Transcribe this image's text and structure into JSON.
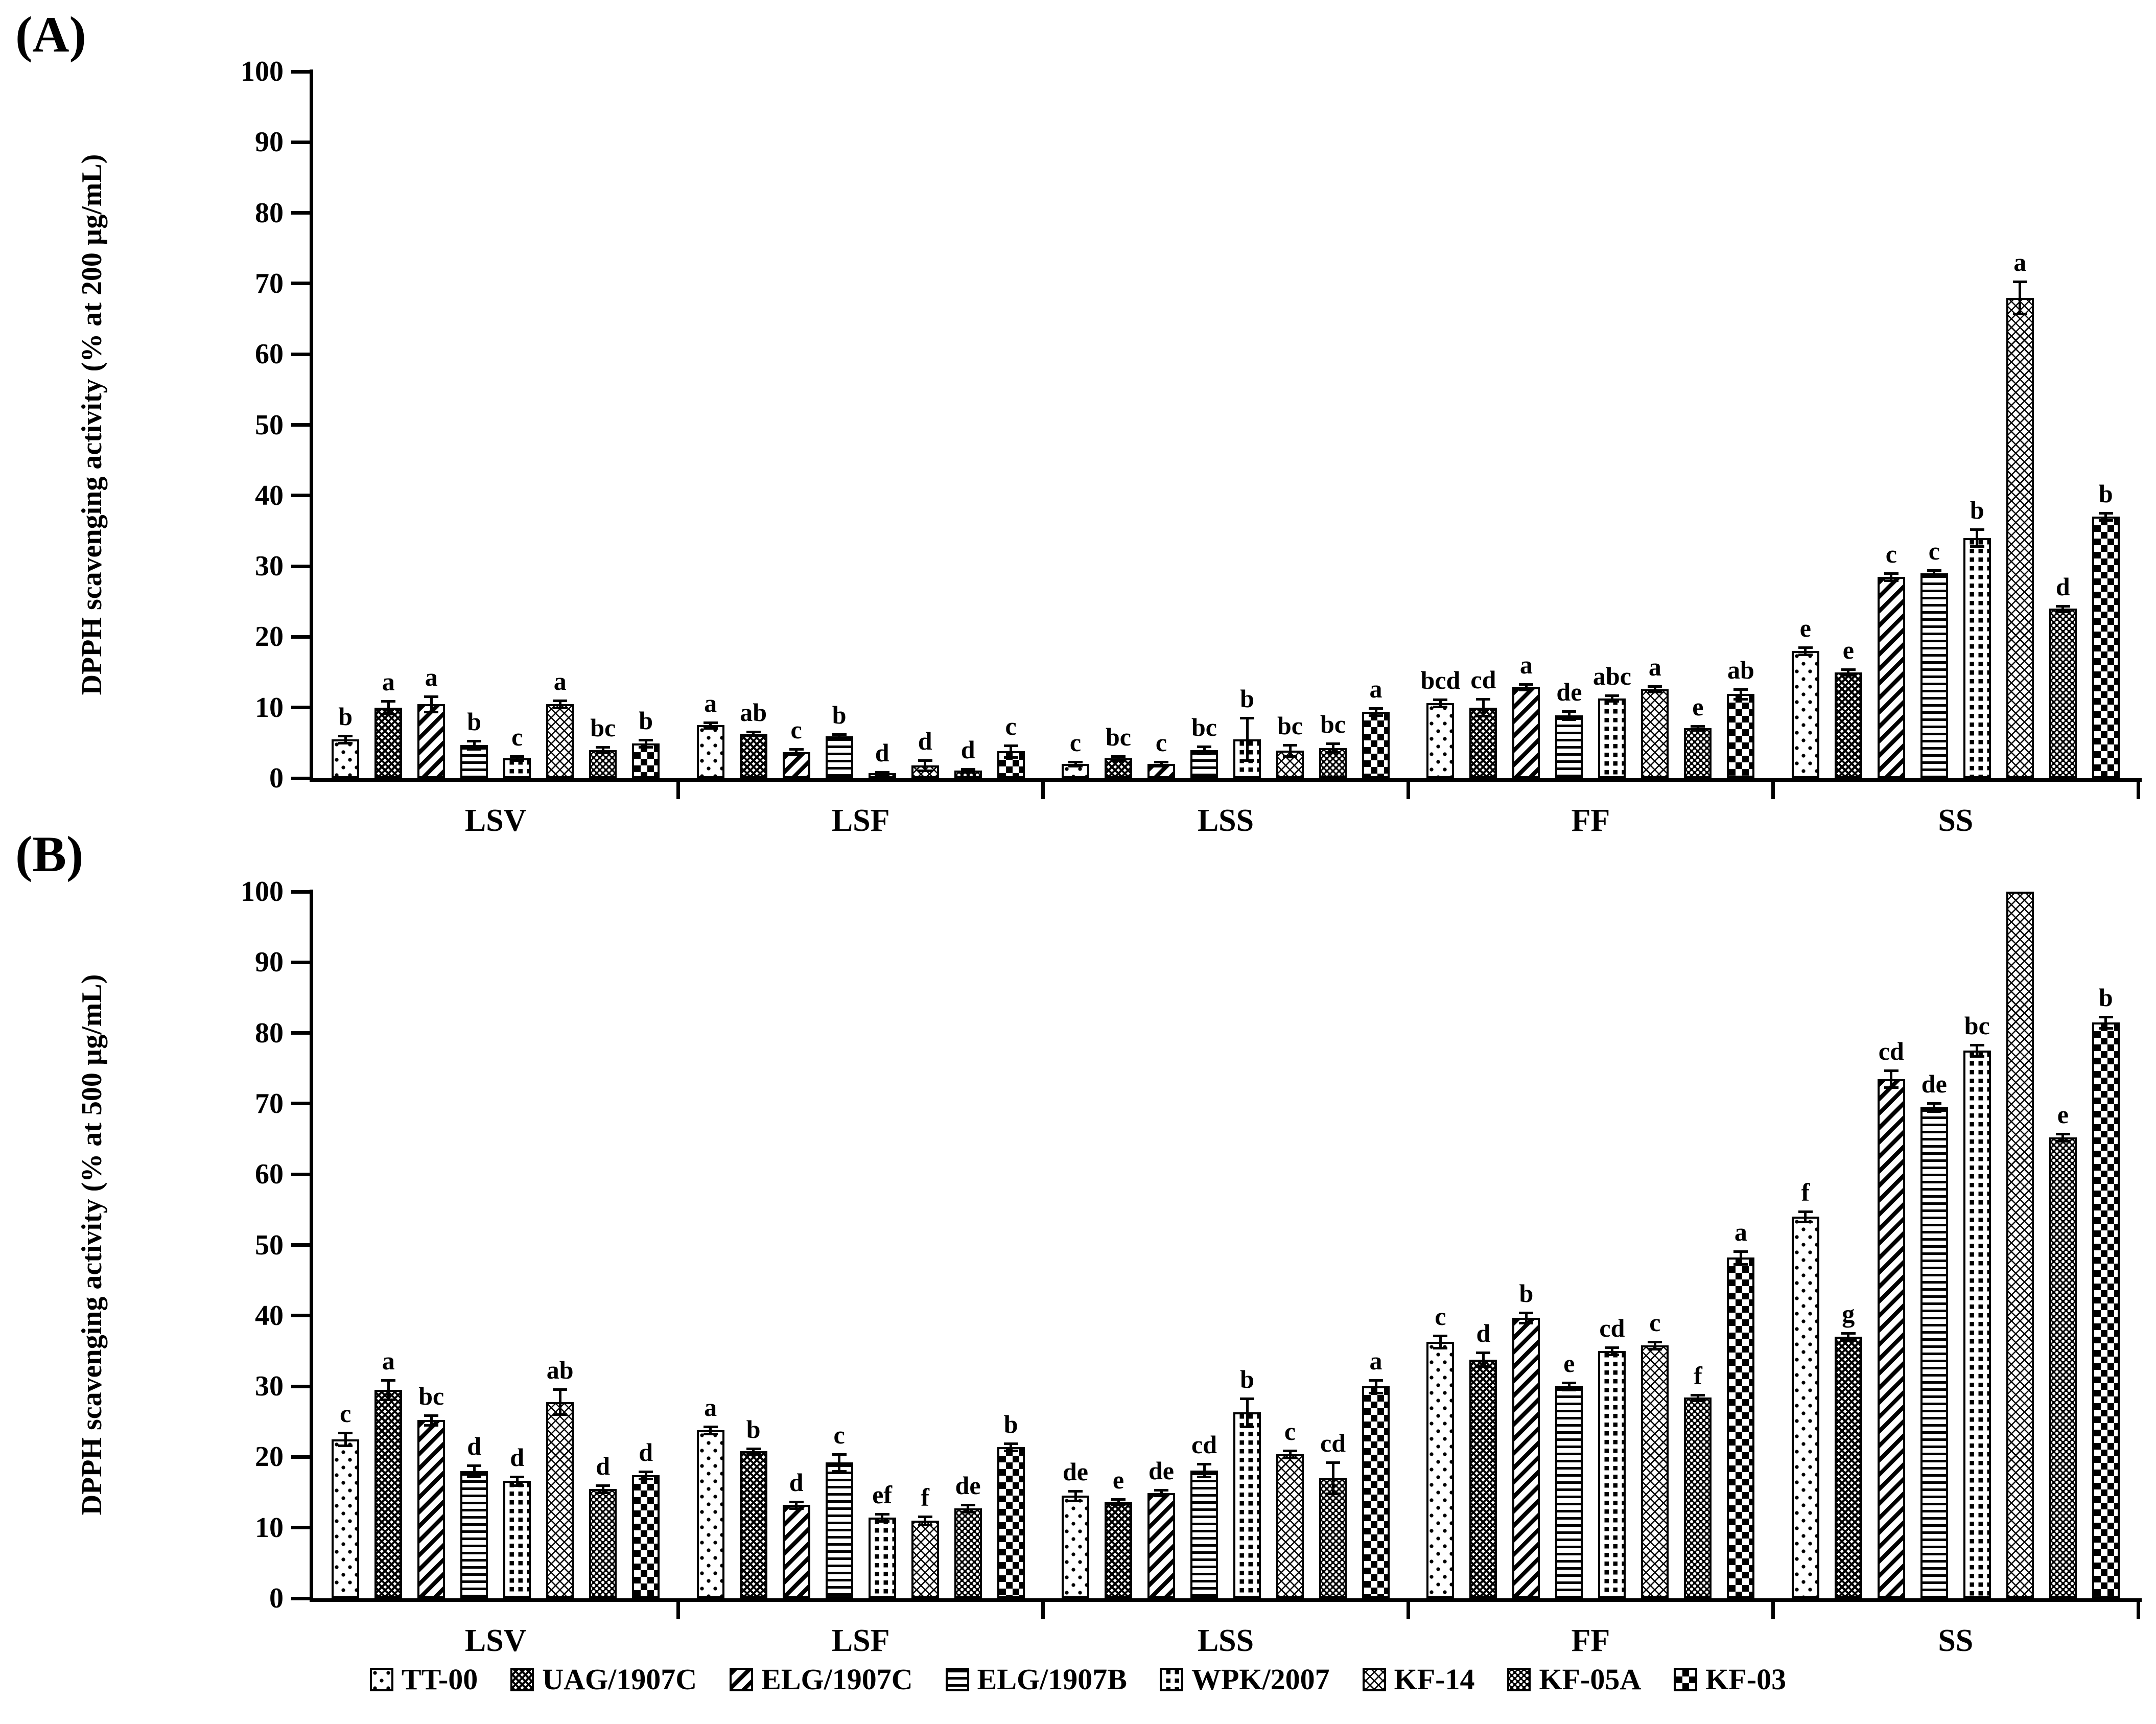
{
  "panels": {
    "a": {
      "label": "(A)",
      "y_title": "DPPH scavenging activity (% at 200 µg/mL)"
    },
    "b": {
      "label": "(B)",
      "y_title": "DPPH scavenging activity (% at 500 µg/mL)"
    }
  },
  "legend": [
    {
      "label": "TT-00",
      "pattern": "dots-sparse"
    },
    {
      "label": "UAG/1907C",
      "pattern": "crosshatch-dense"
    },
    {
      "label": "ELG/1907C",
      "pattern": "diagonal-bold"
    },
    {
      "label": "ELG/1907B",
      "pattern": "horizontal-stripes"
    },
    {
      "label": "WPK/2007",
      "pattern": "squares-grid"
    },
    {
      "label": "KF-14",
      "pattern": "zigzag-fine"
    },
    {
      "label": "KF-05A",
      "pattern": "black-white-dots"
    },
    {
      "label": "KF-03",
      "pattern": "checkerboard"
    }
  ],
  "chart_data": [
    {
      "type": "bar",
      "panel": "A",
      "ylabel": "DPPH scavenging activity (% at 200 µg/mL)",
      "ylim": [
        0,
        100
      ],
      "ytick_step": 10,
      "grid": false,
      "legend_position": "bottom",
      "categories": [
        "LSV",
        "LSF",
        "LSS",
        "FF",
        "SS"
      ],
      "series": [
        {
          "name": "TT-00",
          "pattern": "dots-sparse",
          "values": [
            5.5,
            7.5,
            2.0,
            10.6,
            18.0
          ],
          "err": [
            0.5,
            0.4,
            0.3,
            0.5,
            0.5
          ],
          "letters": [
            "b",
            "a",
            "c",
            "bcd",
            "e"
          ]
        },
        {
          "name": "UAG/1907C",
          "pattern": "crosshatch-dense",
          "values": [
            10.0,
            6.3,
            2.8,
            10.0,
            15.0
          ],
          "err": [
            0.9,
            0.3,
            0.3,
            1.2,
            0.4
          ],
          "letters": [
            "a",
            "ab",
            "bc",
            "cd",
            "e"
          ]
        },
        {
          "name": "ELG/1907C",
          "pattern": "diagonal-bold",
          "values": [
            10.5,
            3.7,
            2.0,
            12.9,
            28.5
          ],
          "err": [
            1.1,
            0.4,
            0.3,
            0.4,
            0.5
          ],
          "letters": [
            "a",
            "c",
            "c",
            "a",
            "c"
          ]
        },
        {
          "name": "ELG/1907B",
          "pattern": "horizontal-stripes",
          "values": [
            4.7,
            5.9,
            4.0,
            8.9,
            29.0
          ],
          "err": [
            0.6,
            0.3,
            0.5,
            0.6,
            0.4
          ],
          "letters": [
            "b",
            "b",
            "bc",
            "de",
            "c"
          ]
        },
        {
          "name": "WPK/2007",
          "pattern": "squares-grid",
          "values": [
            2.8,
            0.7,
            5.5,
            11.3,
            34.0
          ],
          "err": [
            0.3,
            0.2,
            3.0,
            0.4,
            1.2
          ],
          "letters": [
            "c",
            "d",
            "b",
            "abc",
            "b"
          ]
        },
        {
          "name": "KF-14",
          "pattern": "zigzag-fine",
          "values": [
            10.5,
            1.8,
            3.9,
            12.6,
            68.0
          ],
          "err": [
            0.5,
            0.7,
            0.8,
            0.4,
            2.3
          ],
          "letters": [
            "a",
            "d",
            "bc",
            "a",
            "a"
          ]
        },
        {
          "name": "KF-05A",
          "pattern": "black-white-dots",
          "values": [
            4.0,
            1.1,
            4.3,
            7.1,
            24.0
          ],
          "err": [
            0.4,
            0.2,
            0.6,
            0.3,
            0.4
          ],
          "letters": [
            "bc",
            "d",
            "bc",
            "e",
            "d"
          ]
        },
        {
          "name": "KF-03",
          "pattern": "checkerboard",
          "values": [
            4.9,
            3.8,
            9.4,
            11.9,
            37.0
          ],
          "err": [
            0.5,
            0.8,
            0.5,
            0.7,
            0.5
          ],
          "letters": [
            "b",
            "c",
            "a",
            "ab",
            "b"
          ]
        }
      ]
    },
    {
      "type": "bar",
      "panel": "B",
      "ylabel": "DPPH scavenging activity (% at 500 µg/mL)",
      "ylim": [
        0,
        100
      ],
      "ytick_step": 10,
      "grid": false,
      "legend_position": "bottom",
      "categories": [
        "LSV",
        "LSF",
        "LSS",
        "FF",
        "SS"
      ],
      "series": [
        {
          "name": "TT-00",
          "pattern": "dots-sparse",
          "values": [
            22.5,
            23.8,
            14.5,
            36.3,
            54.0
          ],
          "err": [
            0.9,
            0.5,
            0.7,
            0.9,
            0.7
          ],
          "letters": [
            "c",
            "a",
            "de",
            "c",
            "f"
          ]
        },
        {
          "name": "UAG/1907C",
          "pattern": "crosshatch-dense",
          "values": [
            29.5,
            20.8,
            13.6,
            33.8,
            37.0
          ],
          "err": [
            1.4,
            0.4,
            0.4,
            1.0,
            0.5
          ],
          "letters": [
            "a",
            "b",
            "e",
            "d",
            "g"
          ]
        },
        {
          "name": "ELG/1907C",
          "pattern": "diagonal-bold",
          "values": [
            25.2,
            13.2,
            14.9,
            39.7,
            73.5
          ],
          "err": [
            0.7,
            0.5,
            0.4,
            0.7,
            1.2
          ],
          "letters": [
            "bc",
            "d",
            "de",
            "b",
            "cd"
          ]
        },
        {
          "name": "ELG/1907B",
          "pattern": "horizontal-stripes",
          "values": [
            18.0,
            19.2,
            18.1,
            30.0,
            69.5
          ],
          "err": [
            0.8,
            1.2,
            0.9,
            0.5,
            0.6
          ],
          "letters": [
            "d",
            "c",
            "cd",
            "e",
            "de"
          ]
        },
        {
          "name": "WPK/2007",
          "pattern": "squares-grid",
          "values": [
            16.6,
            11.4,
            26.3,
            35.0,
            77.5
          ],
          "err": [
            0.6,
            0.5,
            2.0,
            0.5,
            0.8
          ],
          "letters": [
            "d",
            "ef",
            "b",
            "cd",
            "bc"
          ]
        },
        {
          "name": "KF-14",
          "pattern": "zigzag-fine",
          "values": [
            27.8,
            11.0,
            20.4,
            35.8,
            100.0
          ],
          "err": [
            1.8,
            0.6,
            0.5,
            0.5,
            0.0
          ],
          "letters": [
            "ab",
            "f",
            "c",
            "c",
            ""
          ]
        },
        {
          "name": "KF-05A",
          "pattern": "black-white-dots",
          "values": [
            15.5,
            12.7,
            17.0,
            28.4,
            65.2
          ],
          "err": [
            0.5,
            0.5,
            2.2,
            0.4,
            0.5
          ],
          "letters": [
            "d",
            "de",
            "cd",
            "f",
            "e"
          ]
        },
        {
          "name": "KF-03",
          "pattern": "checkerboard",
          "values": [
            17.4,
            21.4,
            30.0,
            48.2,
            81.5
          ],
          "err": [
            0.5,
            0.5,
            0.9,
            0.9,
            0.8
          ],
          "letters": [
            "d",
            "b",
            "a",
            "a",
            "b"
          ]
        }
      ]
    }
  ]
}
